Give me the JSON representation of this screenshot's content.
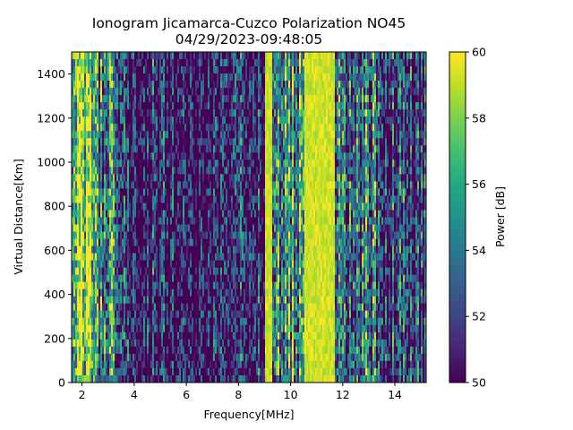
{
  "chart_data": {
    "type": "heatmap",
    "title": "Ionogram Jicamarca-Cuzco Polarization NO45",
    "subtitle": "04/29/2023-09:48:05",
    "xlabel": "Frequency[MHz]",
    "ylabel": "Virtual Distance[Km]",
    "colorbar_label": "Power [dB]",
    "colormap": "viridis",
    "xlim": [
      1.6,
      15.2
    ],
    "ylim": [
      0,
      1500
    ],
    "zlim": [
      50,
      60
    ],
    "x_ticks": [
      2,
      4,
      6,
      8,
      10,
      12,
      14
    ],
    "y_ticks": [
      0,
      200,
      400,
      600,
      800,
      1000,
      1200,
      1400
    ],
    "colorbar_ticks": [
      50,
      52,
      54,
      56,
      58,
      60
    ],
    "frequency_bands": [
      {
        "from": 1.6,
        "to": 2.4,
        "level": 58
      },
      {
        "from": 2.4,
        "to": 3.6,
        "level": 54
      },
      {
        "from": 3.6,
        "to": 9.0,
        "level": 51
      },
      {
        "from": 9.0,
        "to": 9.3,
        "level": 60
      },
      {
        "from": 9.3,
        "to": 10.5,
        "level": 55
      },
      {
        "from": 10.5,
        "to": 11.7,
        "level": 60
      },
      {
        "from": 11.7,
        "to": 13.5,
        "level": 54
      },
      {
        "from": 13.5,
        "to": 15.2,
        "level": 52
      }
    ]
  }
}
